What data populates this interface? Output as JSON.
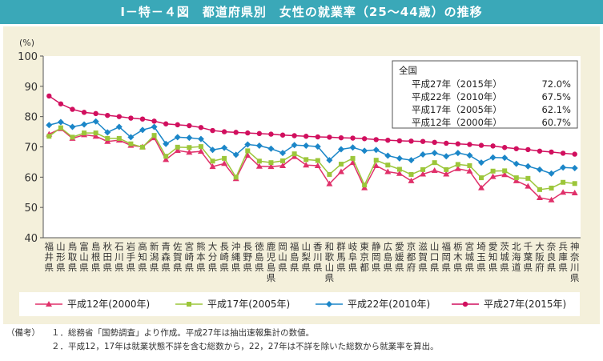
{
  "title": "Ⅰ－特－４図　都道府県別　女性の就業率（25～44歳）の推移",
  "notes": {
    "prefix": "（備考）",
    "items": [
      "１．総務省「国勢調査」より作成。平成27年は抽出速報集計の数値。",
      "２．平成12，17年は就業状態不詳を含む総数から，22，27年は不詳を除いた総数から就業率を算出。"
    ]
  },
  "colors": {
    "title_bg": "#3aa8b8",
    "panel_bg": "#f4f0db",
    "s2000": "#e0306a",
    "s2005": "#9cc63a",
    "s2010": "#1b86c8",
    "s2015": "#d10f5e"
  },
  "chart_data": {
    "type": "line",
    "yunit": "(%)",
    "ylim": [
      40,
      100
    ],
    "yticks": [
      40,
      50,
      60,
      70,
      80,
      90,
      100
    ],
    "grid": false,
    "categories": [
      "福井県",
      "山形県",
      "鳥取県",
      "富山県",
      "島根県",
      "秋田県",
      "石川県",
      "岩手県",
      "高知県",
      "新潟県",
      "青森県",
      "佐賀県",
      "宮崎県",
      "熊本県",
      "大分県",
      "長崎県",
      "沖縄県",
      "長野県",
      "徳島県",
      "鹿児島県",
      "岡山県",
      "福島県",
      "山梨県",
      "香川県",
      "和歌山県",
      "群馬県",
      "岐阜県",
      "東京都",
      "静岡県",
      "広島県",
      "愛媛県",
      "京都府",
      "滋賀県",
      "山口県",
      "福岡県",
      "栃木県",
      "宮城県",
      "埼玉県",
      "愛知県",
      "茨城県",
      "北海道",
      "千葉県",
      "大阪府",
      "奈良県",
      "兵庫県",
      "神奈川県"
    ],
    "legend_box": {
      "heading": "全国",
      "rows": [
        {
          "label": "平成27年（2015年）",
          "value": "72.0%"
        },
        {
          "label": "平成22年（2010年）",
          "value": "67.5%"
        },
        {
          "label": "平成17年（2005年）",
          "value": "62.1%"
        },
        {
          "label": "平成12年（2000年）",
          "value": "60.7%"
        }
      ]
    },
    "series": [
      {
        "key": "s2000",
        "name": "平成12年(2000年)",
        "marker": "triangle",
        "values": [
          74.2,
          76.0,
          72.8,
          74.0,
          73.5,
          71.8,
          72.2,
          70.5,
          70.0,
          73.0,
          65.8,
          68.8,
          68.2,
          68.5,
          63.5,
          64.5,
          59.5,
          67.2,
          63.6,
          63.5,
          63.8,
          66.8,
          64.0,
          63.8,
          57.8,
          61.8,
          64.8,
          56.5,
          63.8,
          61.8,
          61.2,
          58.8,
          61.0,
          62.2,
          61.0,
          62.8,
          62.0,
          56.5,
          60.2,
          60.8,
          58.8,
          57.0,
          53.2,
          52.5,
          55.0,
          54.8
        ]
      },
      {
        "key": "s2005",
        "name": "平成17年(2005年)",
        "marker": "square",
        "values": [
          73.5,
          76.3,
          73.2,
          74.6,
          74.6,
          72.8,
          72.8,
          71.0,
          69.9,
          73.8,
          66.9,
          69.9,
          69.8,
          70.1,
          65.3,
          66.2,
          60.0,
          68.7,
          65.3,
          64.8,
          65.4,
          67.7,
          65.8,
          65.5,
          60.9,
          64.3,
          66.2,
          57.4,
          65.6,
          64.0,
          62.6,
          60.9,
          62.5,
          64.8,
          62.5,
          64.2,
          63.8,
          59.8,
          62.0,
          62.1,
          59.8,
          59.6,
          55.9,
          56.4,
          58.3,
          57.9
        ]
      },
      {
        "key": "s2010",
        "name": "平成22年(2010年)",
        "marker": "diamond",
        "values": [
          77.2,
          78.2,
          76.6,
          77.4,
          78.4,
          74.8,
          76.6,
          73.2,
          75.6,
          76.6,
          71.0,
          73.2,
          73.0,
          72.6,
          69.0,
          69.7,
          67.4,
          70.8,
          70.4,
          69.4,
          68.0,
          70.6,
          70.4,
          70.1,
          65.6,
          69.2,
          69.8,
          68.7,
          69.0,
          67.1,
          66.2,
          65.6,
          67.5,
          68.0,
          66.9,
          68.0,
          67.2,
          64.8,
          66.5,
          66.4,
          64.4,
          63.6,
          62.5,
          61.2,
          63.2,
          63.0
        ]
      },
      {
        "key": "s2015",
        "name": "平成27年(2015年)",
        "marker": "circle",
        "values": [
          86.8,
          84.2,
          82.4,
          81.4,
          81.0,
          80.4,
          80.0,
          79.5,
          79.2,
          78.5,
          77.6,
          77.3,
          77.0,
          76.4,
          75.4,
          75.0,
          74.8,
          74.6,
          74.4,
          74.2,
          73.9,
          73.7,
          73.5,
          73.3,
          73.2,
          73.0,
          72.9,
          72.7,
          72.4,
          72.2,
          72.0,
          71.9,
          71.8,
          71.5,
          71.2,
          71.0,
          70.8,
          70.5,
          70.3,
          69.8,
          69.4,
          69.1,
          68.6,
          68.3,
          67.9,
          67.6
        ]
      }
    ]
  }
}
